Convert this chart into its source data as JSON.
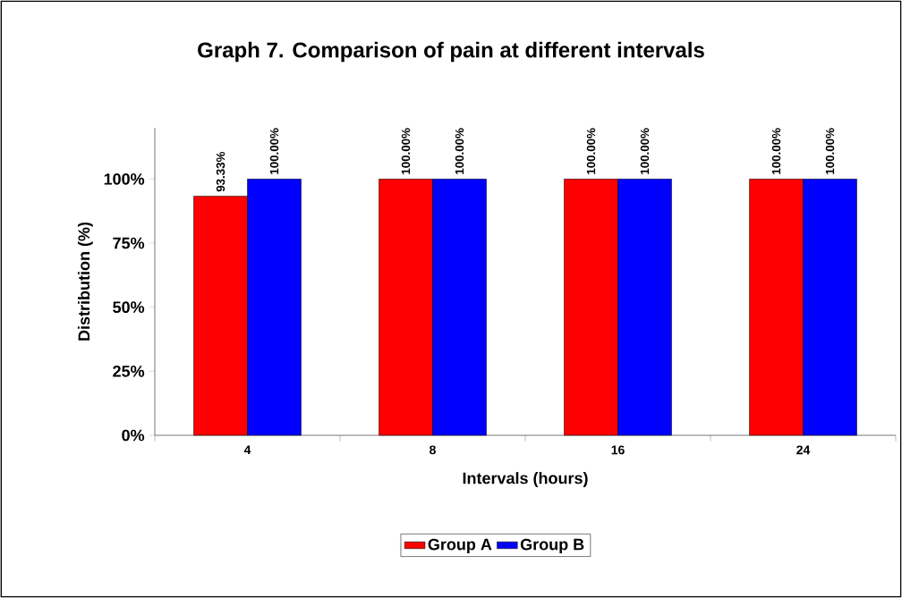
{
  "chart_data": {
    "type": "bar",
    "title": "Graph 7. Comparison of pain at different intervals",
    "xlabel": "Intervals (hours)",
    "ylabel": "Distribution (%)",
    "categories": [
      "4",
      "8",
      "16",
      "24"
    ],
    "series": [
      {
        "name": "Group A",
        "color": "#ff0000",
        "values": [
          93.33,
          100,
          100,
          100
        ],
        "value_labels": [
          "93.33%",
          "100.00%",
          "100.00%",
          "100.00%"
        ]
      },
      {
        "name": "Group B",
        "color": "#0000ff",
        "values": [
          100,
          100,
          100,
          100
        ],
        "value_labels": [
          "100.00%",
          "100.00%",
          "100.00%",
          "100.00%"
        ]
      }
    ],
    "ylim": [
      0,
      120
    ],
    "yticks": [
      {
        "value": 0,
        "label": "0%"
      },
      {
        "value": 25,
        "label": "25%"
      },
      {
        "value": 50,
        "label": "50%"
      },
      {
        "value": 75,
        "label": "75%"
      },
      {
        "value": 100,
        "label": "100%"
      }
    ],
    "grid": false,
    "legend": "bottom"
  }
}
